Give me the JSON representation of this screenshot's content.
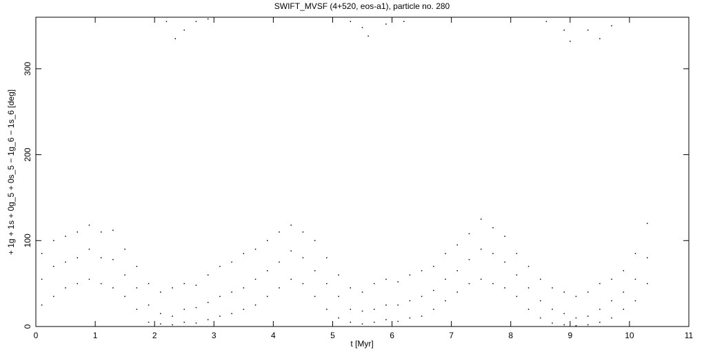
{
  "chart_data": {
    "type": "scatter",
    "title": "SWIFT_MVSF (4+520, eos-a1), particle no. 280",
    "x_label": "t [Myr]",
    "y_label": "+ 1g + 1s + 0g_5 + 0s_5 − 1g_6 − 1s_6 [deg]",
    "xlim": [
      0,
      11
    ],
    "ylim": [
      0,
      360
    ],
    "xticks": [
      0,
      1,
      2,
      3,
      4,
      5,
      6,
      7,
      8,
      9,
      10,
      11
    ],
    "yticks": [
      0,
      100,
      200,
      300
    ],
    "grid": false,
    "series": [
      {
        "color": "#000000",
        "x": [
          0.1,
          0.1,
          0.1,
          0.3,
          0.3,
          0.3,
          0.5,
          0.5,
          0.5,
          0.7,
          0.7,
          0.7,
          0.9,
          0.9,
          0.9,
          1.1,
          1.1,
          1.1,
          1.3,
          1.3,
          1.3,
          1.5,
          1.5,
          1.5,
          1.7,
          1.7,
          1.7,
          1.9,
          1.9,
          1.9,
          2.1,
          2.1,
          2.1,
          2.3,
          2.3,
          2.3,
          2.5,
          2.5,
          2.5,
          2.7,
          2.7,
          2.7,
          2.9,
          2.9,
          2.9,
          3.1,
          3.1,
          3.1,
          3.3,
          3.3,
          3.3,
          3.5,
          3.5,
          3.5,
          3.7,
          3.7,
          3.7,
          3.9,
          3.9,
          3.9,
          4.1,
          4.1,
          4.1,
          4.3,
          4.3,
          4.3,
          4.5,
          4.5,
          4.5,
          4.7,
          4.7,
          4.7,
          4.9,
          4.9,
          4.9,
          5.1,
          5.1,
          5.1,
          5.3,
          5.3,
          5.3,
          5.5,
          5.5,
          5.5,
          5.7,
          5.7,
          5.7,
          5.9,
          5.9,
          5.9,
          6.1,
          6.1,
          6.1,
          6.3,
          6.3,
          6.3,
          6.5,
          6.5,
          6.5,
          6.7,
          6.7,
          6.7,
          6.9,
          6.9,
          6.9,
          7.1,
          7.1,
          7.1,
          7.3,
          7.3,
          7.3,
          7.5,
          7.5,
          7.5,
          7.7,
          7.7,
          7.7,
          7.9,
          7.9,
          7.9,
          8.1,
          8.1,
          8.1,
          8.3,
          8.3,
          8.3,
          8.5,
          8.5,
          8.5,
          8.7,
          8.7,
          8.7,
          8.9,
          8.9,
          8.9,
          9.1,
          9.1,
          9.1,
          9.3,
          9.3,
          9.3,
          9.5,
          9.5,
          9.5,
          9.7,
          9.7,
          9.7,
          9.9,
          9.9,
          9.9,
          10.1,
          10.1,
          10.1,
          10.3,
          10.3,
          10.3,
          2.2,
          2.35,
          2.5,
          2.7,
          2.9,
          5.3,
          5.5,
          5.6,
          5.9,
          6.2,
          8.6,
          8.9,
          9.0,
          9.3,
          9.5,
          9.7
        ],
        "values": [
          25,
          55,
          85,
          35,
          70,
          100,
          45,
          75,
          105,
          50,
          80,
          110,
          55,
          90,
          118,
          50,
          80,
          110,
          45,
          78,
          112,
          35,
          60,
          90,
          20,
          45,
          70,
          5,
          25,
          50,
          3,
          15,
          40,
          2,
          12,
          45,
          5,
          20,
          50,
          4,
          22,
          48,
          8,
          28,
          60,
          12,
          35,
          70,
          15,
          40,
          75,
          20,
          45,
          85,
          25,
          55,
          90,
          35,
          65,
          100,
          45,
          75,
          110,
          55,
          88,
          118,
          50,
          80,
          110,
          35,
          65,
          100,
          20,
          50,
          80,
          10,
          35,
          60,
          5,
          20,
          45,
          3,
          18,
          40,
          5,
          20,
          50,
          8,
          25,
          55,
          6,
          25,
          52,
          10,
          30,
          60,
          12,
          35,
          65,
          20,
          42,
          70,
          30,
          55,
          85,
          40,
          65,
          95,
          50,
          78,
          108,
          55,
          90,
          125,
          50,
          85,
          115,
          45,
          75,
          105,
          35,
          60,
          85,
          20,
          45,
          70,
          10,
          30,
          55,
          4,
          20,
          45,
          2,
          15,
          40,
          1,
          10,
          35,
          2,
          12,
          40,
          5,
          20,
          50,
          10,
          30,
          55,
          20,
          40,
          65,
          30,
          55,
          85,
          50,
          80,
          120,
          355,
          335,
          345,
          355,
          358,
          355,
          348,
          338,
          352,
          355,
          355,
          345,
          332,
          345,
          335,
          350
        ]
      }
    ]
  }
}
